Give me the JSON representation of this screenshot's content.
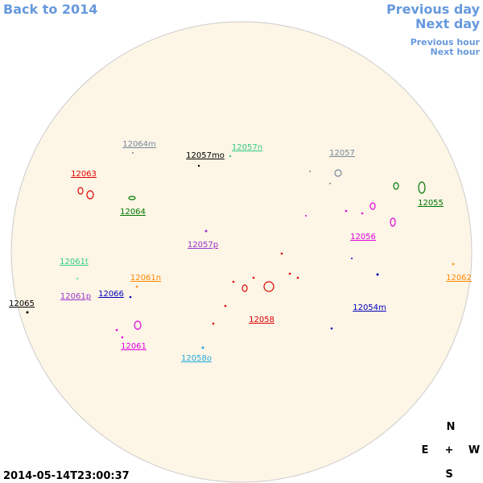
{
  "nav": {
    "back": "Back to 2014",
    "previous_day": "Previous day",
    "next_day": "Next day",
    "previous_hour": "Previous hour",
    "next_hour": "Next hour"
  },
  "timestamp": "2014-05-14T23:00:37",
  "compass": {
    "north": "N",
    "east": "E",
    "center": "+",
    "west": "W",
    "south": "S"
  },
  "regions": [
    {
      "label": "12064m",
      "color": "#778899"
    },
    {
      "label": "12057mo",
      "color": "#000000"
    },
    {
      "label": "12057n",
      "color": "#33cc88"
    },
    {
      "label": "12057",
      "color": "#778899"
    },
    {
      "label": "12063",
      "color": "#dd0000"
    },
    {
      "label": "12064",
      "color": "#007700"
    },
    {
      "label": "12055",
      "color": "#007700"
    },
    {
      "label": "12056",
      "color": "#dd00dd"
    },
    {
      "label": "12057p",
      "color": "#9933cc"
    },
    {
      "label": "12061t",
      "color": "#33cc88"
    },
    {
      "label": "12061n",
      "color": "#ff8800"
    },
    {
      "label": "12062",
      "color": "#ff8800"
    },
    {
      "label": "12066",
      "color": "#0000bb"
    },
    {
      "label": "12061p",
      "color": "#9933cc"
    },
    {
      "label": "12065",
      "color": "#000000"
    },
    {
      "label": "12054m",
      "color": "#0000bb"
    },
    {
      "label": "12058",
      "color": "#dd0000"
    },
    {
      "label": "12061",
      "color": "#dd00dd"
    },
    {
      "label": "12058o",
      "color": "#22aadd"
    }
  ]
}
